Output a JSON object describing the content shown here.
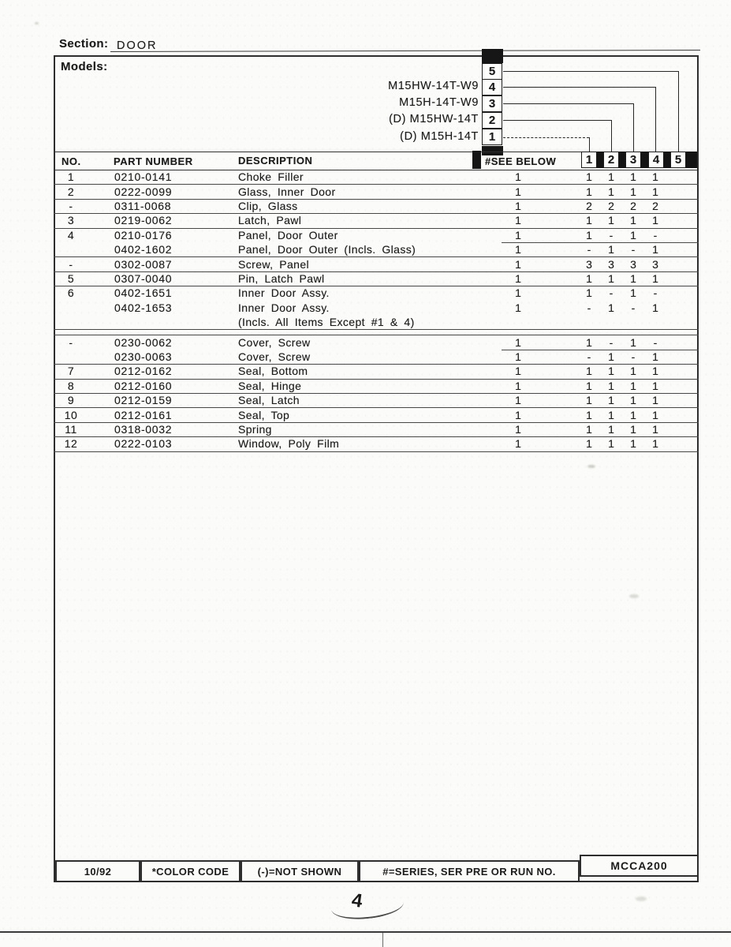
{
  "section": {
    "label": "Section:",
    "value": "DOOR"
  },
  "models": {
    "label": "Models:",
    "items": [
      {
        "num": "5",
        "label": ""
      },
      {
        "num": "4",
        "label": "M15HW-14T-W9"
      },
      {
        "num": "3",
        "label": "M15H-14T-W9"
      },
      {
        "num": "2",
        "label": "(D) M15HW-14T"
      },
      {
        "num": "1",
        "label": "(D) M15H-14T"
      }
    ]
  },
  "table": {
    "headers": {
      "no": "NO.",
      "part": "PART NUMBER",
      "desc": "DESCRIPTION",
      "see": "#SEE BELOW",
      "cols": [
        "1",
        "2",
        "3",
        "4",
        "5"
      ]
    },
    "rows": [
      {
        "no": "1",
        "part": "0210-0141",
        "desc": "Choke Filler",
        "see": "1",
        "vals": [
          "1",
          "1",
          "1",
          "1",
          ""
        ]
      },
      {
        "no": "2",
        "part": "0222-0099",
        "desc": "Glass, Inner Door",
        "see": "1",
        "vals": [
          "1",
          "1",
          "1",
          "1",
          ""
        ]
      },
      {
        "no": "-",
        "part": "0311-0068",
        "desc": "Clip, Glass",
        "see": "1",
        "vals": [
          "2",
          "2",
          "2",
          "2",
          ""
        ]
      },
      {
        "no": "3",
        "part": "0219-0062",
        "desc": "Latch, Pawl",
        "see": "1",
        "vals": [
          "1",
          "1",
          "1",
          "1",
          ""
        ]
      },
      {
        "no": "4",
        "part": "0210-0176",
        "desc": "Panel, Door Outer",
        "see": "1",
        "vals": [
          "1",
          "-",
          "1",
          "-",
          ""
        ]
      },
      {
        "no": "",
        "part": "0402-1602",
        "desc": "Panel, Door Outer (Incls. Glass)",
        "see": "1",
        "vals": [
          "-",
          "1",
          "-",
          "1",
          ""
        ]
      },
      {
        "no": "-",
        "part": "0302-0087",
        "desc": "Screw, Panel",
        "see": "1",
        "vals": [
          "3",
          "3",
          "3",
          "3",
          ""
        ]
      },
      {
        "no": "5",
        "part": "0307-0040",
        "desc": "Pin, Latch Pawl",
        "see": "1",
        "vals": [
          "1",
          "1",
          "1",
          "1",
          ""
        ]
      },
      {
        "no": "6",
        "part": "0402-1651",
        "desc": "Inner Door Assy.",
        "see": "1",
        "vals": [
          "1",
          "-",
          "1",
          "-",
          ""
        ]
      },
      {
        "no": "",
        "part": "0402-1653",
        "desc": "Inner Door Assy.",
        "see": "1",
        "vals": [
          "-",
          "1",
          "-",
          "1",
          ""
        ]
      },
      {
        "no": "",
        "part": "",
        "desc": "(Incls. All Items Except #1 & 4)",
        "see": "",
        "vals": [
          "",
          "",
          "",
          "",
          ""
        ]
      },
      {
        "no": "-",
        "part": "0230-0062",
        "desc": "Cover, Screw",
        "see": "1",
        "vals": [
          "1",
          "-",
          "1",
          "-",
          ""
        ]
      },
      {
        "no": "",
        "part": "0230-0063",
        "desc": "Cover, Screw",
        "see": "1",
        "vals": [
          "-",
          "1",
          "-",
          "1",
          ""
        ]
      },
      {
        "no": "7",
        "part": "0212-0162",
        "desc": "Seal, Bottom",
        "see": "1",
        "vals": [
          "1",
          "1",
          "1",
          "1",
          ""
        ]
      },
      {
        "no": "8",
        "part": "0212-0160",
        "desc": "Seal, Hinge",
        "see": "1",
        "vals": [
          "1",
          "1",
          "1",
          "1",
          ""
        ]
      },
      {
        "no": "9",
        "part": "0212-0159",
        "desc": "Seal, Latch",
        "see": "1",
        "vals": [
          "1",
          "1",
          "1",
          "1",
          ""
        ]
      },
      {
        "no": "10",
        "part": "0212-0161",
        "desc": "Seal, Top",
        "see": "1",
        "vals": [
          "1",
          "1",
          "1",
          "1",
          ""
        ]
      },
      {
        "no": "11",
        "part": "0318-0032",
        "desc": "Spring",
        "see": "1",
        "vals": [
          "1",
          "1",
          "1",
          "1",
          ""
        ]
      },
      {
        "no": "12",
        "part": "0222-0103",
        "desc": "Window, Poly Film",
        "see": "1",
        "vals": [
          "1",
          "1",
          "1",
          "1",
          ""
        ]
      }
    ]
  },
  "footer": {
    "date": "10/92",
    "color_code": "*COLOR CODE",
    "not_shown": "(-)=NOT SHOWN",
    "series_note": "#=SERIES, SER PRE OR RUN NO.",
    "doc_code": "MCCA200"
  },
  "annotations": {
    "page_mark": "4"
  },
  "colors": {
    "ink": "#1b1b1b",
    "paper": "#fbfbf9",
    "box_black": "#141414"
  }
}
